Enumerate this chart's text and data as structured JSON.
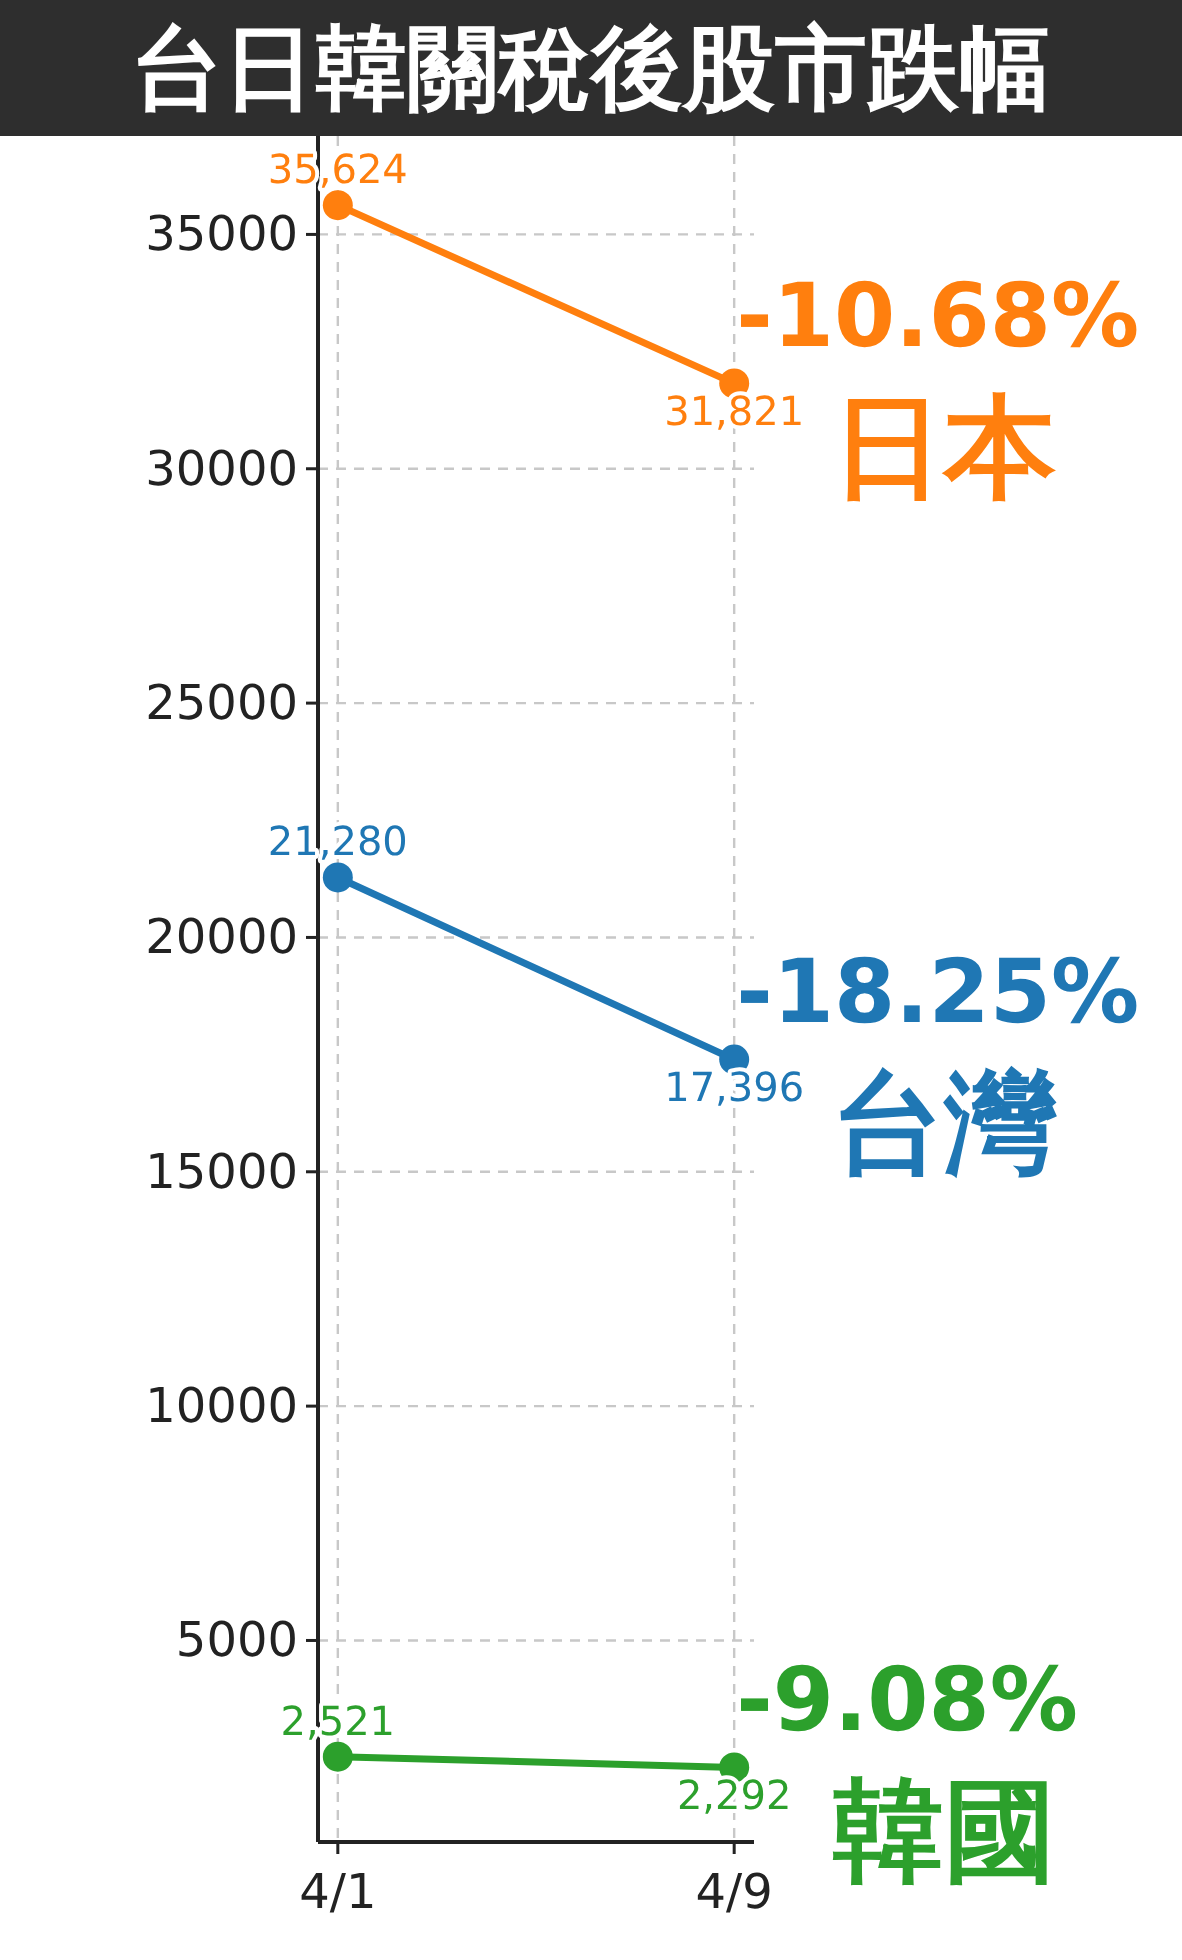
{
  "chart_data": {
    "type": "line",
    "title": "台日韓關稅後股市跌幅",
    "categories": [
      "4/1",
      "4/9"
    ],
    "series": [
      {
        "name": "日本",
        "color": "#ff7f0e",
        "values": [
          35624,
          31821
        ],
        "value_labels": [
          "35,624",
          "31,821"
        ]
      },
      {
        "name": "台灣",
        "color": "#1f77b4",
        "values": [
          21280,
          17396
        ],
        "value_labels": [
          "21,280",
          "17,396"
        ]
      },
      {
        "name": "韓國",
        "color": "#2ca02c",
        "values": [
          2521,
          2292
        ],
        "value_labels": [
          "2,521",
          "2,292"
        ]
      }
    ],
    "ylim": [
      700,
      37100
    ],
    "yticks": [
      5000,
      10000,
      15000,
      20000,
      25000,
      30000,
      35000
    ],
    "grid": true,
    "marker": "circle",
    "annotations": [
      {
        "text": "-10.68%",
        "x": "4/9",
        "y": 31821
      },
      {
        "text": "-18.25%",
        "x": "4/9",
        "y": 17396
      },
      {
        "text": "-9.08%",
        "x": "4/9",
        "y": 2292
      }
    ]
  }
}
